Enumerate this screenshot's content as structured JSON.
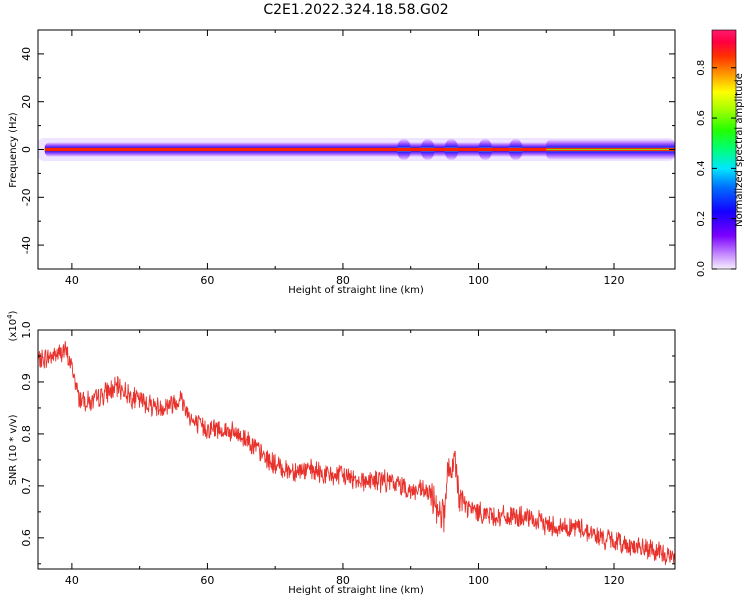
{
  "title": "C2E1.2022.324.18.58.G02",
  "colors": {
    "signal_line": "#e8312b",
    "background": "#ffffff",
    "axis": "#000000"
  },
  "chart_data": [
    {
      "type": "heatmap",
      "title": "",
      "xlabel": "Height of straight line (km)",
      "ylabel": "Frequency (Hz)",
      "xlim": [
        35,
        129
      ],
      "ylim": [
        -50,
        50
      ],
      "xticks": [
        "40",
        "60",
        "80",
        "100",
        "120"
      ],
      "yticks": [
        "40",
        "20",
        "0",
        "-20",
        "-40"
      ],
      "band": {
        "center_frequency_hz": 0,
        "core_half_width_hz": 1,
        "outer_half_width_hz": 3,
        "perturbation_heights_km": [
          89,
          92.5,
          96,
          101,
          105.5
        ],
        "widening_from_km": 110
      },
      "colorbar": {
        "label": "Normalized spectral amplitude",
        "range": [
          0,
          0.95
        ],
        "ticks": [
          "0.0",
          "0.2",
          "0.4",
          "0.6",
          "0.8"
        ]
      },
      "grid": false
    },
    {
      "type": "line",
      "title": "",
      "xlabel": "Height of straight line (km)",
      "ylabel": "SNR (10 * v/v)",
      "scale_label": "(x10",
      "scale_exponent": "4",
      "xlim": [
        35,
        129
      ],
      "ylim": [
        0.54,
        1.0
      ],
      "xticks": [
        "40",
        "60",
        "80",
        "100",
        "120"
      ],
      "yticks": [
        "1.0",
        "0.9",
        "0.8",
        "0.7",
        "0.6"
      ],
      "grid": false,
      "series": [
        {
          "x": [
            35,
            37,
            39,
            40,
            41,
            43,
            45,
            47,
            49,
            51,
            53,
            55,
            56,
            58,
            60,
            62,
            64,
            66,
            68,
            70,
            72,
            75,
            78,
            80,
            83,
            86,
            89,
            90,
            92,
            93,
            94,
            95,
            95.5,
            96,
            96.5,
            97,
            98,
            100,
            103,
            106,
            109,
            112,
            115,
            118,
            121,
            124,
            127,
            129
          ],
          "y": [
            0.94,
            0.95,
            0.96,
            0.93,
            0.87,
            0.86,
            0.88,
            0.89,
            0.87,
            0.86,
            0.85,
            0.86,
            0.87,
            0.82,
            0.81,
            0.81,
            0.8,
            0.79,
            0.76,
            0.74,
            0.73,
            0.73,
            0.72,
            0.72,
            0.71,
            0.71,
            0.7,
            0.69,
            0.69,
            0.68,
            0.66,
            0.64,
            0.74,
            0.7,
            0.76,
            0.69,
            0.66,
            0.65,
            0.64,
            0.64,
            0.63,
            0.62,
            0.62,
            0.6,
            0.59,
            0.58,
            0.57,
            0.56
          ]
        }
      ]
    }
  ]
}
